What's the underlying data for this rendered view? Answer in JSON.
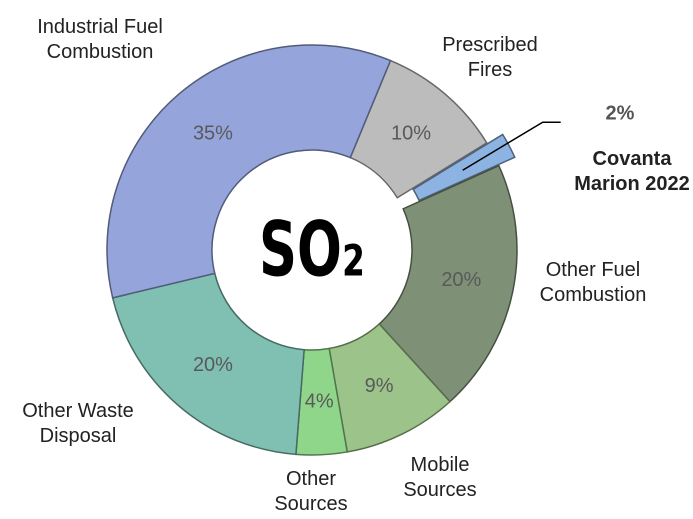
{
  "chart_data": {
    "type": "donut",
    "center_label": "SO₂",
    "categories": [
      "Prescribed\nFires",
      "Covanta\nMarion 2022",
      "Other Fuel\nCombustion",
      "Mobile\nSources",
      "Other\nSources",
      "Other Waste\nDisposal",
      "Industrial Fuel\nCombustion"
    ],
    "values": [
      10,
      2,
      20,
      9,
      4,
      20,
      35
    ],
    "value_labels": [
      "10%",
      "2%",
      "20%",
      "9%",
      "4%",
      "20%",
      "35%"
    ],
    "colors": [
      "#bcbcbc",
      "#8db3e2",
      "#7e9176",
      "#9cc48a",
      "#8fd68a",
      "#80c0b2",
      "#95a5dc"
    ],
    "exploded": [
      false,
      true,
      false,
      false,
      false,
      false,
      false
    ]
  }
}
